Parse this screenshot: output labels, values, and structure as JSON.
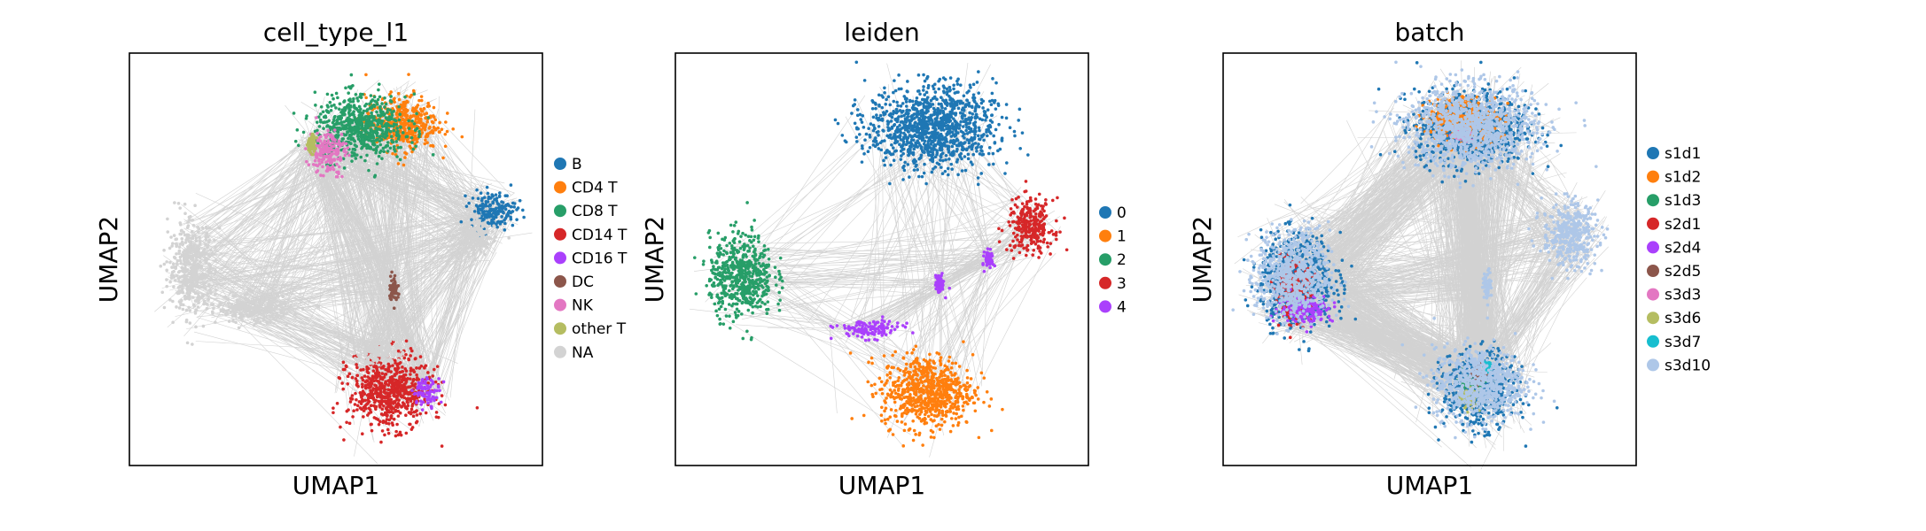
{
  "chart_data": [
    {
      "type": "scatter",
      "title": "cell_type_l1",
      "xlabel": "UMAP1",
      "ylabel": "UMAP2",
      "legend": "right",
      "grid": false,
      "ticks": false,
      "paga_edges": true,
      "series": [
        {
          "name": "B",
          "color": "#1f77b4",
          "clusters": [
            [
              0.88,
              0.62,
              0.05,
              0.04
            ]
          ]
        },
        {
          "name": "CD4 T",
          "color": "#ff7f0e",
          "clusters": [
            [
              0.66,
              0.83,
              0.08,
              0.06
            ]
          ]
        },
        {
          "name": "CD8 T",
          "color": "#279e68",
          "clusters": [
            [
              0.56,
              0.82,
              0.1,
              0.07
            ]
          ]
        },
        {
          "name": "CD14 T",
          "color": "#d62728",
          "clusters": [
            [
              0.63,
              0.18,
              0.09,
              0.08
            ]
          ]
        },
        {
          "name": "CD16 T",
          "color": "#aa40fc",
          "clusters": [
            [
              0.72,
              0.18,
              0.03,
              0.03
            ]
          ]
        },
        {
          "name": "DC",
          "color": "#8c564b",
          "clusters": [
            [
              0.64,
              0.43,
              0.01,
              0.03
            ]
          ]
        },
        {
          "name": "NK",
          "color": "#e377c2",
          "clusters": [
            [
              0.48,
              0.76,
              0.04,
              0.05
            ]
          ]
        },
        {
          "name": "other T",
          "color": "#b5bd61",
          "clusters": [
            [
              0.44,
              0.78,
              0.01,
              0.02
            ]
          ]
        },
        {
          "name": "NA",
          "color": "#d3d3d3",
          "clusters": [
            [
              0.15,
              0.48,
              0.05,
              0.1
            ],
            [
              0.3,
              0.38,
              0.08,
              0.03
            ],
            [
              0.84,
              0.55,
              0.04,
              0.04
            ],
            [
              0.6,
              0.28,
              0.05,
              0.03
            ]
          ]
        }
      ]
    },
    {
      "type": "scatter",
      "title": "leiden",
      "xlabel": "UMAP1",
      "ylabel": "UMAP2",
      "legend": "right",
      "grid": false,
      "ticks": false,
      "paga_edges": true,
      "series": [
        {
          "name": "0",
          "color": "#1f77b4",
          "clusters": [
            [
              0.62,
              0.82,
              0.14,
              0.09
            ]
          ]
        },
        {
          "name": "1",
          "color": "#ff7f0e",
          "clusters": [
            [
              0.61,
              0.18,
              0.1,
              0.08
            ]
          ]
        },
        {
          "name": "2",
          "color": "#279e68",
          "clusters": [
            [
              0.16,
              0.46,
              0.07,
              0.09
            ]
          ]
        },
        {
          "name": "3",
          "color": "#d62728",
          "clusters": [
            [
              0.86,
              0.58,
              0.05,
              0.06
            ]
          ]
        },
        {
          "name": "4",
          "color": "#aa40fc",
          "clusters": [
            [
              0.47,
              0.33,
              0.07,
              0.02
            ],
            [
              0.64,
              0.44,
              0.01,
              0.02
            ],
            [
              0.76,
              0.5,
              0.01,
              0.02
            ]
          ]
        }
      ]
    },
    {
      "type": "scatter",
      "title": "batch",
      "xlabel": "UMAP1",
      "ylabel": "UMAP2",
      "legend": "right",
      "grid": false,
      "ticks": false,
      "paga_edges": true,
      "series": [
        {
          "name": "s1d1",
          "color": "#1f77b4",
          "clusters": [
            [
              0.6,
              0.82,
              0.12,
              0.08
            ],
            [
              0.18,
              0.45,
              0.08,
              0.1
            ],
            [
              0.62,
              0.18,
              0.08,
              0.08
            ]
          ]
        },
        {
          "name": "s1d2",
          "color": "#ff7f0e",
          "clusters": [
            [
              0.58,
              0.84,
              0.08,
              0.05
            ]
          ]
        },
        {
          "name": "s1d3",
          "color": "#279e68",
          "clusters": [
            [
              0.6,
              0.2,
              0.03,
              0.02
            ]
          ]
        },
        {
          "name": "s2d1",
          "color": "#d62728",
          "clusters": [
            [
              0.17,
              0.42,
              0.04,
              0.06
            ]
          ]
        },
        {
          "name": "s2d4",
          "color": "#aa40fc",
          "clusters": [
            [
              0.2,
              0.38,
              0.06,
              0.03
            ]
          ]
        },
        {
          "name": "s2d5",
          "color": "#8c564b",
          "clusters": [
            [
              0.62,
              0.22,
              0.02,
              0.02
            ]
          ]
        },
        {
          "name": "s3d3",
          "color": "#e377c2",
          "clusters": [
            [
              0.58,
              0.8,
              0.02,
              0.02
            ]
          ]
        },
        {
          "name": "s3d6",
          "color": "#b5bd61",
          "clusters": [
            [
              0.6,
              0.16,
              0.02,
              0.02
            ]
          ]
        },
        {
          "name": "s3d7",
          "color": "#17becf",
          "clusters": [
            [
              0.64,
              0.24,
              0.01,
              0.01
            ]
          ]
        },
        {
          "name": "s3d10",
          "color": "#aec7e8",
          "clusters": [
            [
              0.6,
              0.82,
              0.14,
              0.09
            ],
            [
              0.84,
              0.56,
              0.06,
              0.07
            ],
            [
              0.17,
              0.46,
              0.08,
              0.1
            ],
            [
              0.62,
              0.2,
              0.1,
              0.08
            ],
            [
              0.64,
              0.44,
              0.01,
              0.03
            ]
          ]
        }
      ]
    }
  ]
}
